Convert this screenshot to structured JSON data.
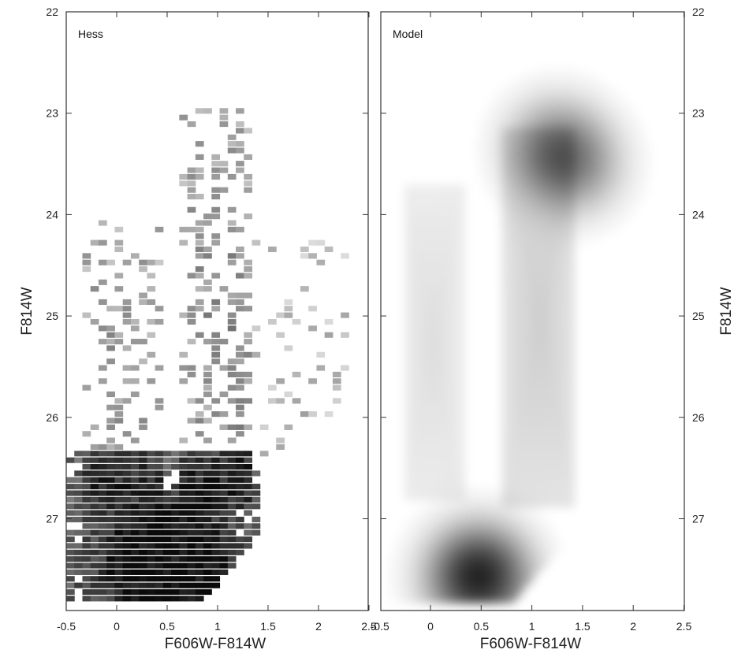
{
  "chart_data": [
    {
      "type": "heatmap",
      "panel_label": "Hess",
      "xlabel": "F606W-F814W",
      "ylabel": "F814W",
      "xlim": [
        -0.55,
        2.5
      ],
      "ylim": [
        27.9,
        22.0
      ],
      "x_ticks": [
        "-0.5",
        "0",
        "0.5",
        "1",
        "1.5",
        "2",
        "2.5"
      ],
      "y_ticks": [
        "22",
        "23",
        "24",
        "25",
        "26",
        "27"
      ],
      "y_axis_inverted": true,
      "colormap": "greyscale (white = 0 stars, black = max)",
      "density_features": [
        {
          "feature": "main sequence / faint populated region",
          "color_range": [
            -0.4,
            1.2
          ],
          "mag_range": [
            26.5,
            27.8
          ],
          "relative_density": 1.0
        },
        {
          "feature": "peak density",
          "color": 0.5,
          "mag": 27.55,
          "relative_density": 1.0
        },
        {
          "feature": "red giant branch",
          "color_range": [
            0.7,
            1.2
          ],
          "mag_range": [
            23.3,
            26.5
          ],
          "relative_density": 0.35
        },
        {
          "feature": "blue plume",
          "color_range": [
            -0.3,
            0.3
          ],
          "mag_range": [
            24.3,
            26.5
          ],
          "relative_density": 0.3
        },
        {
          "feature": "sparse red scatter",
          "color_range": [
            1.2,
            2.2
          ],
          "mag_range": [
            24.5,
            26.5
          ],
          "relative_density": 0.12
        },
        {
          "feature": "faint-red completeness edge",
          "from": [
            0.8,
            27.8
          ],
          "to": [
            1.3,
            27.2
          ]
        }
      ]
    },
    {
      "type": "heatmap",
      "panel_label": "Model",
      "xlabel": "F606W-F814W",
      "ylabel": "F814W",
      "xlim": [
        -0.55,
        2.5
      ],
      "ylim": [
        27.9,
        22.0
      ],
      "x_ticks": [
        "-0.5",
        "0",
        "0.5",
        "1",
        "1.5",
        "2",
        "2.5"
      ],
      "y_ticks": [
        "22",
        "23",
        "24",
        "25",
        "26",
        "27"
      ],
      "y_axis_inverted": true,
      "colormap": "greyscale (white = 0, black = max)",
      "density_features": [
        {
          "feature": "peak density",
          "color": 0.45,
          "mag": 27.55,
          "relative_density": 1.0
        },
        {
          "feature": "red clump / RGB blob 1",
          "color": 1.2,
          "mag": 23.3,
          "relative_density": 0.35
        },
        {
          "feature": "red clump / RGB blob 2",
          "color": 1.38,
          "mag": 23.5,
          "relative_density": 0.35
        },
        {
          "feature": "red giant branch",
          "color_range": [
            0.8,
            1.3
          ],
          "mag_range": [
            23.5,
            26.5
          ],
          "relative_density": 0.18
        },
        {
          "feature": "blue plume",
          "color_range": [
            -0.2,
            0.2
          ],
          "mag_range": [
            24.0,
            26.5
          ],
          "relative_density": 0.12
        },
        {
          "feature": "faint-red completeness edge",
          "from": [
            0.8,
            27.8
          ],
          "to": [
            1.5,
            27.0
          ]
        }
      ]
    }
  ],
  "figure": {
    "left_ylabel": "F814W",
    "right_ylabel": "F814W"
  }
}
